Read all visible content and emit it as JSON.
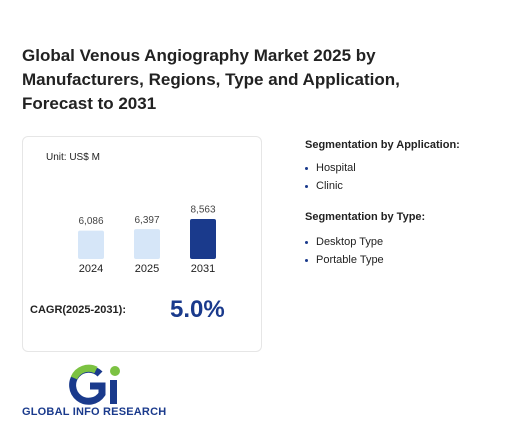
{
  "header": {
    "title": "Global Venous Angiography Market 2025 by Manufacturers, Regions, Type and Application, Forecast to 2031"
  },
  "chart_data": {
    "type": "bar",
    "unit": "Unit: US$ M",
    "categories": [
      "2024",
      "2025",
      "2031"
    ],
    "values": [
      6086,
      6397,
      8563
    ],
    "value_labels": [
      "6,086",
      "6,397",
      "8,563"
    ],
    "colors": [
      "#d6e6f8",
      "#d6e6f8",
      "#1a3a8c"
    ]
  },
  "cagr": {
    "label": "CAGR(2025-2031):",
    "value": "5.0%"
  },
  "segmentation": [
    {
      "title": "Segmentation by Application:",
      "items": [
        "Hospital",
        "Clinic"
      ]
    },
    {
      "title": "Segmentation by Type:",
      "items": [
        "Desktop Type",
        "Portable Type"
      ]
    }
  ],
  "logo": {
    "text": "GLOBAL INFO RESEARCH"
  }
}
